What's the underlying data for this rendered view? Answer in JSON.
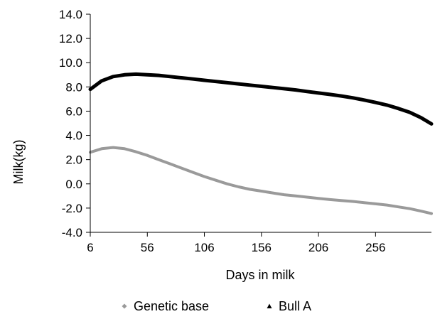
{
  "chart_data": {
    "type": "line",
    "title": "",
    "xlabel": "Days in milk",
    "ylabel": "Milk(kg)",
    "xlim": [
      6,
      305
    ],
    "ylim": [
      -4.0,
      14.0
    ],
    "x_ticks": [
      6,
      56,
      106,
      156,
      206,
      256
    ],
    "x_tick_labels": [
      "6",
      "56",
      "106",
      "156",
      "206",
      "256"
    ],
    "y_ticks": [
      -4,
      -2,
      0,
      2,
      4,
      6,
      8,
      10,
      12,
      14
    ],
    "y_tick_labels": [
      "-4.0",
      "-2.0",
      "0.0",
      "2.0",
      "4.0",
      "6.0",
      "8.0",
      "10.0",
      "12.0",
      "14.0"
    ],
    "grid": false,
    "legend_position": "bottom",
    "series": [
      {
        "name": "Genetic base",
        "color": "#9a9a9a",
        "marker": "diamond",
        "x": [
          6,
          16,
          26,
          36,
          46,
          56,
          66,
          76,
          86,
          96,
          106,
          116,
          126,
          136,
          146,
          156,
          166,
          176,
          186,
          196,
          206,
          216,
          226,
          236,
          246,
          256,
          266,
          276,
          286,
          296,
          305
        ],
        "y": [
          2.6,
          2.9,
          3.0,
          2.9,
          2.65,
          2.35,
          2.0,
          1.65,
          1.3,
          0.95,
          0.6,
          0.3,
          0.0,
          -0.25,
          -0.45,
          -0.6,
          -0.75,
          -0.9,
          -1.0,
          -1.1,
          -1.2,
          -1.3,
          -1.38,
          -1.45,
          -1.55,
          -1.65,
          -1.75,
          -1.9,
          -2.05,
          -2.25,
          -2.45
        ]
      },
      {
        "name": "Bull A",
        "color": "#000000",
        "marker": "triangle",
        "x": [
          6,
          16,
          26,
          36,
          46,
          56,
          66,
          76,
          86,
          96,
          106,
          116,
          126,
          136,
          146,
          156,
          166,
          176,
          186,
          196,
          206,
          216,
          226,
          236,
          246,
          256,
          266,
          276,
          286,
          296,
          305
        ],
        "y": [
          7.8,
          8.5,
          8.85,
          9.0,
          9.05,
          9.0,
          8.95,
          8.85,
          8.75,
          8.65,
          8.55,
          8.45,
          8.35,
          8.25,
          8.15,
          8.05,
          7.95,
          7.85,
          7.75,
          7.62,
          7.5,
          7.38,
          7.25,
          7.1,
          6.92,
          6.72,
          6.5,
          6.22,
          5.9,
          5.45,
          4.95
        ]
      }
    ]
  }
}
